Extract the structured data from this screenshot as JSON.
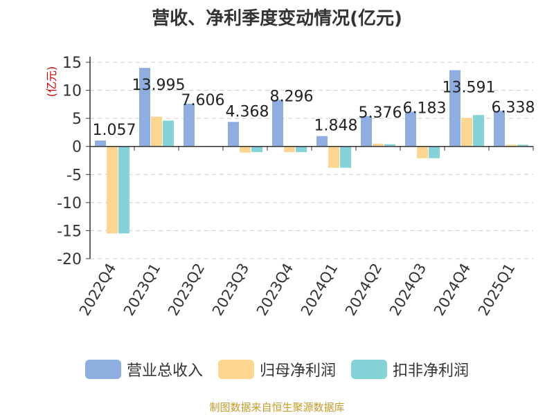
{
  "chart_data": {
    "type": "bar",
    "title": "营收、净利季度变动情况(亿元)",
    "unit_label": "(亿元)",
    "categories": [
      "2022Q4",
      "2023Q1",
      "2023Q2",
      "2023Q3",
      "2023Q4",
      "2024Q1",
      "2024Q2",
      "2024Q3",
      "2024Q4",
      "2025Q1"
    ],
    "series": [
      {
        "name": "营业总收入",
        "color": "#8eaee0",
        "values": [
          1.057,
          13.995,
          7.606,
          4.368,
          8.296,
          1.848,
          5.376,
          6.183,
          13.591,
          6.338
        ]
      },
      {
        "name": "归母净利润",
        "color": "#fcd591",
        "values": [
          -15.5,
          5.3,
          0.0,
          -1.1,
          -1.0,
          -3.8,
          0.5,
          -2.1,
          5.1,
          0.3
        ]
      },
      {
        "name": "扣非净利润",
        "color": "#84d3d7",
        "values": [
          -15.5,
          4.6,
          0.0,
          -1.0,
          -1.0,
          -3.8,
          0.4,
          -2.1,
          5.6,
          0.3
        ]
      }
    ],
    "value_labels": [
      "1.057",
      "13.995",
      "7.606",
      "4.368",
      "8.296",
      "1.848",
      "5.376",
      "6.183",
      "13.591",
      "6.338"
    ],
    "y_ticks": [
      15,
      10,
      5,
      0,
      -5,
      -10,
      -15,
      -20
    ],
    "ylim": [
      -20,
      15
    ],
    "grid": "horizontal dashed",
    "legend_position": "bottom"
  },
  "source": "制图数据来自恒生聚源数据库"
}
